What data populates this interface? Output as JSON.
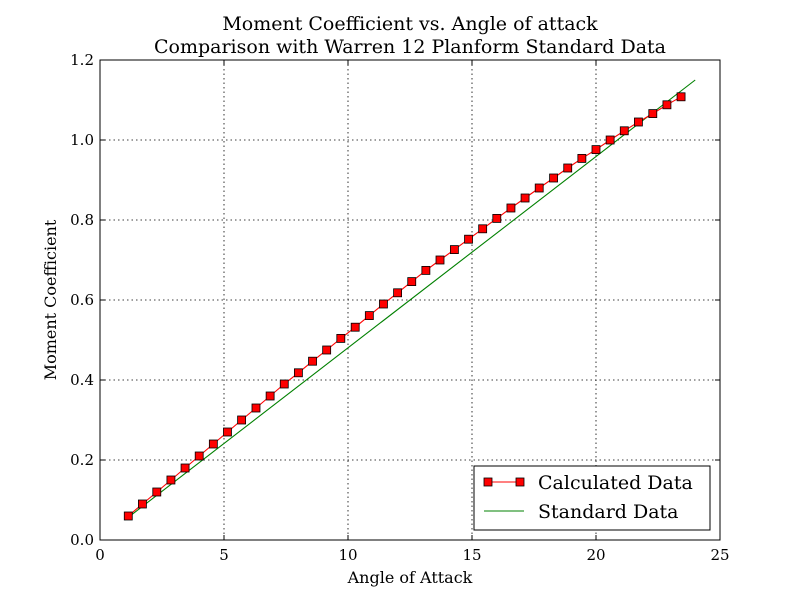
{
  "chart_data": {
    "type": "line",
    "title": "Moment Coefficient vs. Angle of attack",
    "subtitle": "Comparison with Warren 12 Planform Standard Data",
    "xlabel": "Angle of Attack",
    "ylabel": "Moment Coefficient",
    "xlim": [
      0,
      25
    ],
    "ylim": [
      0,
      1.2
    ],
    "xticks": [
      0,
      5,
      10,
      15,
      20,
      25
    ],
    "xtick_labels": [
      "0",
      "5",
      "10",
      "15",
      "20",
      "25"
    ],
    "yticks": [
      0,
      0.2,
      0.4,
      0.6,
      0.8,
      1.0,
      1.2
    ],
    "ytick_labels": [
      "0.0",
      "0.2",
      "0.4",
      "0.6",
      "0.8",
      "1.0",
      "1.2"
    ],
    "grid": true,
    "legend_position": "bottom-right",
    "series": [
      {
        "name": "Calculated Data",
        "color": "#ff0000",
        "marker": "square",
        "x": [
          1.14,
          1.71,
          2.29,
          2.86,
          3.43,
          4.0,
          4.57,
          5.14,
          5.71,
          6.29,
          6.86,
          7.43,
          8.0,
          8.57,
          9.14,
          9.71,
          10.29,
          10.86,
          11.43,
          12.0,
          12.57,
          13.14,
          13.71,
          14.29,
          14.86,
          15.43,
          16.0,
          16.57,
          17.14,
          17.71,
          18.29,
          18.86,
          19.43,
          20.0,
          20.57,
          21.14,
          21.71,
          22.29,
          22.86,
          23.43
        ],
        "y": [
          0.06,
          0.09,
          0.12,
          0.15,
          0.18,
          0.21,
          0.24,
          0.27,
          0.3,
          0.33,
          0.36,
          0.39,
          0.418,
          0.447,
          0.475,
          0.504,
          0.532,
          0.561,
          0.59,
          0.618,
          0.646,
          0.674,
          0.7,
          0.726,
          0.752,
          0.778,
          0.804,
          0.83,
          0.855,
          0.88,
          0.905,
          0.93,
          0.954,
          0.976,
          1.0,
          1.023,
          1.045,
          1.066,
          1.088,
          1.108
        ]
      },
      {
        "name": "Standard Data",
        "color": "#008000",
        "marker": "none",
        "x": [
          1.0,
          24.0
        ],
        "y": [
          0.05,
          1.15
        ]
      }
    ]
  }
}
